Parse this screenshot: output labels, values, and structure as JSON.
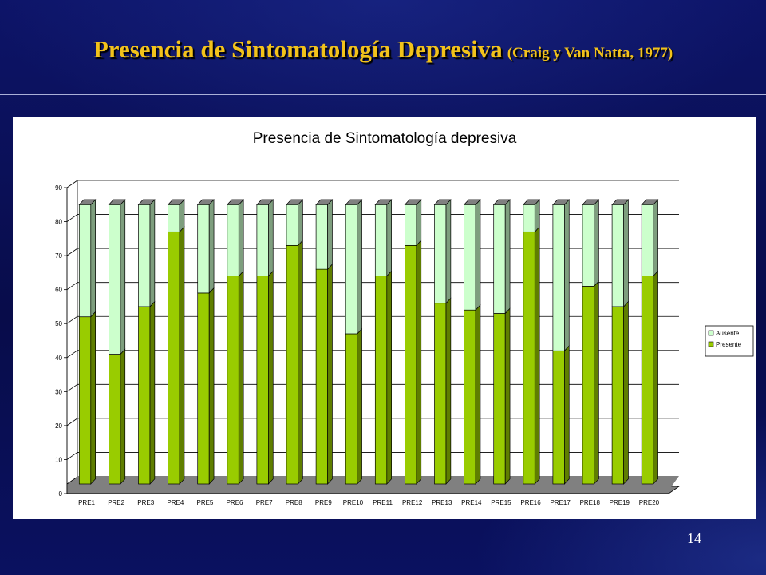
{
  "slide": {
    "title": "Presencia de Sintomatología Depresiva",
    "citation": "(Craig y Van Natta, 1977)",
    "page_number": "14"
  },
  "chart_data": {
    "type": "bar",
    "stacked": true,
    "three_d": true,
    "title": "Presencia de Sintomatología depresiva",
    "xlabel": "",
    "ylabel": "",
    "ylim": [
      0,
      90
    ],
    "yticks": [
      0,
      10,
      20,
      30,
      40,
      50,
      60,
      70,
      80,
      90
    ],
    "grid": true,
    "legend_position": "right",
    "categories": [
      "PRE1",
      "PRE2",
      "PRE3",
      "PRE4",
      "PRE5",
      "PRE6",
      "PRE7",
      "PRE8",
      "PRE9",
      "PRE10",
      "PRE11",
      "PRE12",
      "PRE13",
      "PRE14",
      "PRE15",
      "PRE16",
      "PRE17",
      "PRE18",
      "PRE19",
      "PRE20"
    ],
    "series": [
      {
        "name": "Presente",
        "color": "#99cc00",
        "values": [
          50,
          39,
          53,
          75,
          57,
          62,
          62,
          71,
          64,
          45,
          62,
          71,
          54,
          52,
          51,
          75,
          40,
          59,
          53,
          62
        ]
      },
      {
        "name": "Ausente",
        "color": "#ccffcc",
        "values": [
          33,
          44,
          30,
          8,
          26,
          21,
          21,
          12,
          19,
          38,
          21,
          12,
          29,
          31,
          32,
          8,
          43,
          24,
          30,
          21
        ]
      }
    ],
    "legend": [
      "Ausente",
      "Presente"
    ]
  }
}
